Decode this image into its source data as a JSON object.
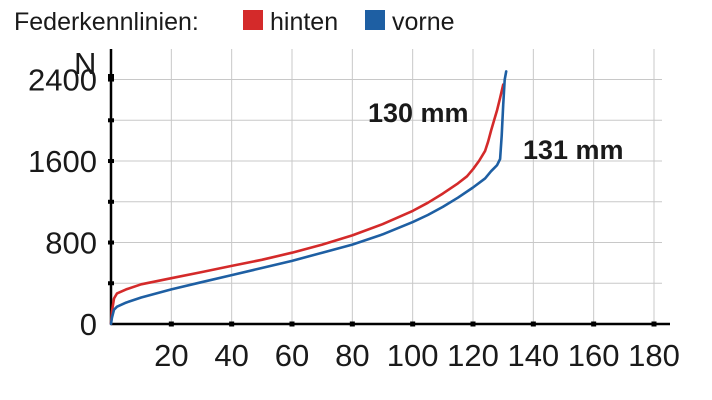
{
  "chart_data": {
    "type": "line",
    "legend": {
      "title": "Federkennlinien:",
      "placement": "top-left"
    },
    "ylabel": "N",
    "xlim": [
      0,
      180
    ],
    "ylim": [
      0,
      2700
    ],
    "x_ticks": [
      0,
      20,
      40,
      60,
      80,
      100,
      120,
      140,
      160,
      180
    ],
    "x_tick_labels": [
      "",
      "20",
      "40",
      "60",
      "80",
      "100",
      "120",
      "140",
      "160",
      "180"
    ],
    "y_ticks": [
      0,
      800,
      1600,
      2400
    ],
    "y_tick_labels": [
      "0",
      "800",
      "1600",
      "2400"
    ],
    "grid": true,
    "series": [
      {
        "name": "hinten",
        "color": "#d42a2a",
        "x": [
          0,
          0.3,
          1,
          2,
          5,
          10,
          20,
          30,
          40,
          50,
          60,
          70,
          80,
          90,
          100,
          105,
          110,
          115,
          118,
          120,
          122,
          124,
          125,
          126,
          127,
          128,
          129,
          130
        ],
        "y": [
          0,
          120,
          250,
          300,
          340,
          390,
          450,
          510,
          570,
          630,
          700,
          780,
          870,
          980,
          1110,
          1190,
          1280,
          1380,
          1450,
          1520,
          1600,
          1700,
          1790,
          1900,
          2000,
          2100,
          2220,
          2350
        ]
      },
      {
        "name": "vorne",
        "color": "#1e5fa3",
        "x": [
          0,
          0.3,
          1,
          2,
          5,
          10,
          20,
          30,
          40,
          50,
          60,
          70,
          80,
          90,
          100,
          105,
          110,
          115,
          120,
          124,
          126,
          127,
          128,
          129,
          129.5,
          130,
          130.5,
          131
        ],
        "y": [
          0,
          60,
          140,
          170,
          210,
          260,
          340,
          410,
          480,
          550,
          620,
          700,
          780,
          880,
          1000,
          1070,
          1150,
          1240,
          1340,
          1430,
          1500,
          1530,
          1560,
          1620,
          1850,
          2150,
          2400,
          2480
        ]
      }
    ],
    "annotations": [
      {
        "text": "130 mm",
        "series": "hinten"
      },
      {
        "text": "131 mm",
        "series": "vorne"
      }
    ]
  }
}
